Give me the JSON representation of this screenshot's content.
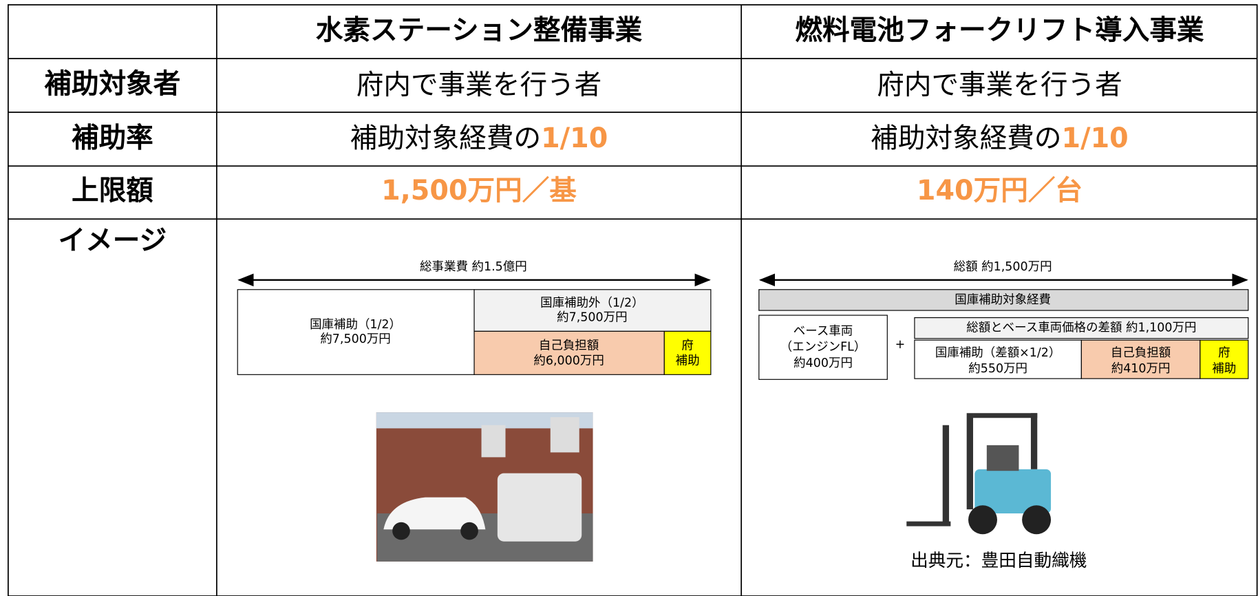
{
  "table": {
    "columns": [
      "水素ステーション整備事業",
      "燃料電池フォークリフト導入事業"
    ],
    "rows": [
      {
        "label": "補助対象者",
        "cells": [
          {
            "text": "府内で事業を行う者"
          },
          {
            "text": "府内で事業を行う者"
          }
        ]
      },
      {
        "label": "補助率",
        "cells": [
          {
            "text": "補助対象経費の",
            "highlight": "1/10"
          },
          {
            "text": "補助対象経費の",
            "highlight": "1/10"
          }
        ]
      },
      {
        "label": "上限額",
        "cells": [
          {
            "highlight": "1,500万円／基"
          },
          {
            "highlight": "140万円／台"
          }
        ]
      },
      {
        "label": "イメージ"
      }
    ]
  },
  "left_diagram": {
    "total": "総事業費 約1.5億円",
    "national": [
      "国庫補助（1/2）",
      "約7,500万円"
    ],
    "non_national": [
      "国庫補助外（1/2）",
      "約7,500万円"
    ],
    "self": [
      "自己負担額",
      "約6,000万円"
    ],
    "prefecture": [
      "府",
      "補助"
    ]
  },
  "right_diagram": {
    "total": "総額 約1,500万円",
    "eligible": "国庫補助対象経費",
    "base": [
      "ベース車両",
      "（エンジンFL）",
      "約400万円"
    ],
    "plus": "+",
    "difference": "総額とベース車両価格の差額 約1,100万円",
    "national": [
      "国庫補助（差額×1/2）",
      "約550万円"
    ],
    "self": [
      "自己負担額",
      "約410万円"
    ],
    "prefecture": [
      "府",
      "補助"
    ],
    "source": "出典元：豊田自動織機"
  }
}
